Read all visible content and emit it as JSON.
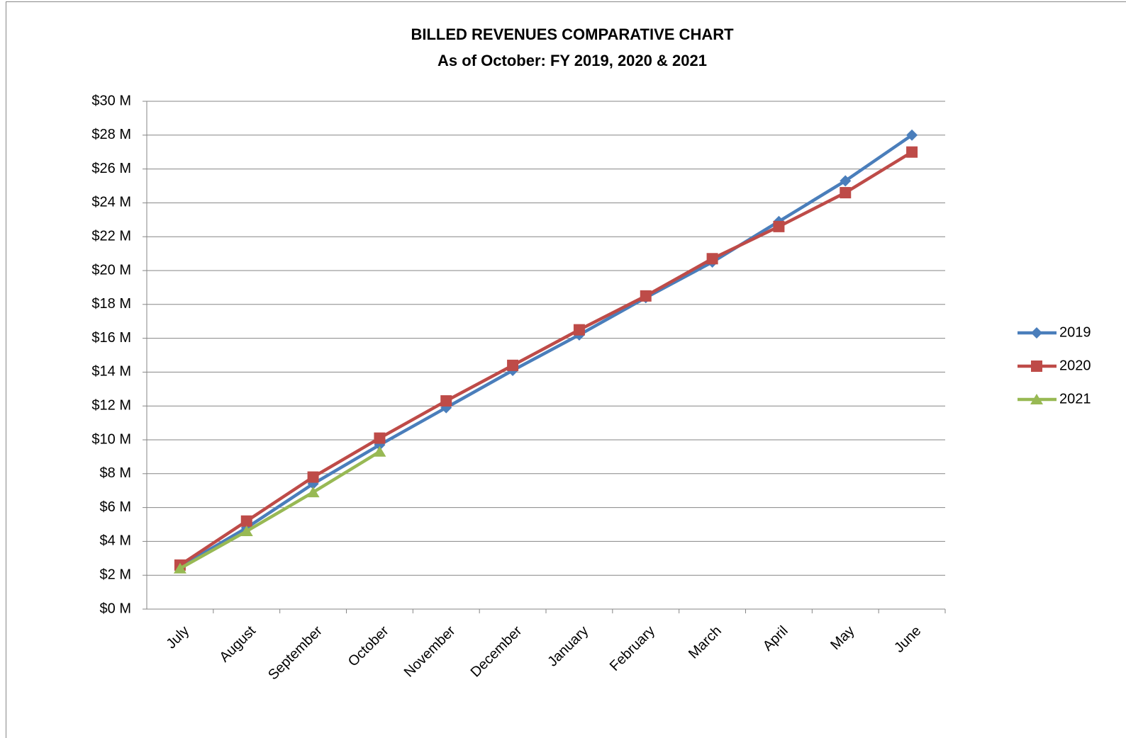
{
  "chart_data": {
    "type": "line",
    "title": "BILLED REVENUES COMPARATIVE CHART",
    "subtitle": "As of October: FY 2019, 2020 & 2021",
    "categories": [
      "July",
      "August",
      "September",
      "October",
      "November",
      "December",
      "January",
      "February",
      "March",
      "April",
      "May",
      "June"
    ],
    "series": [
      {
        "name": "2019",
        "color": "#4a7ebb",
        "marker": "diamond",
        "values": [
          2.5,
          4.8,
          7.4,
          9.7,
          11.9,
          14.1,
          16.2,
          18.4,
          20.5,
          22.9,
          25.3,
          28.0
        ]
      },
      {
        "name": "2020",
        "color": "#be4b48",
        "marker": "square",
        "values": [
          2.6,
          5.2,
          7.8,
          10.1,
          12.3,
          14.4,
          16.5,
          18.5,
          20.7,
          22.6,
          24.6,
          27.0
        ]
      },
      {
        "name": "2021",
        "color": "#98b954",
        "marker": "triangle",
        "values": [
          2.4,
          4.6,
          6.9,
          9.3,
          null,
          null,
          null,
          null,
          null,
          null,
          null,
          null
        ]
      }
    ],
    "ylim": [
      0,
      30
    ],
    "yticks": [
      {
        "value": 0,
        "label": "$0 M"
      },
      {
        "value": 2,
        "label": "$2 M"
      },
      {
        "value": 4,
        "label": "$4 M"
      },
      {
        "value": 6,
        "label": "$6 M"
      },
      {
        "value": 8,
        "label": "$8 M"
      },
      {
        "value": 10,
        "label": "$10 M"
      },
      {
        "value": 12,
        "label": "$12 M"
      },
      {
        "value": 14,
        "label": "$14 M"
      },
      {
        "value": 16,
        "label": "$16 M"
      },
      {
        "value": 18,
        "label": "$18 M"
      },
      {
        "value": 20,
        "label": "$20 M"
      },
      {
        "value": 22,
        "label": "$22 M"
      },
      {
        "value": 24,
        "label": "$24 M"
      },
      {
        "value": 26,
        "label": "$26 M"
      },
      {
        "value": 28,
        "label": "$28 M"
      },
      {
        "value": 30,
        "label": "$30 M"
      }
    ],
    "grid": true,
    "legend": "right"
  }
}
